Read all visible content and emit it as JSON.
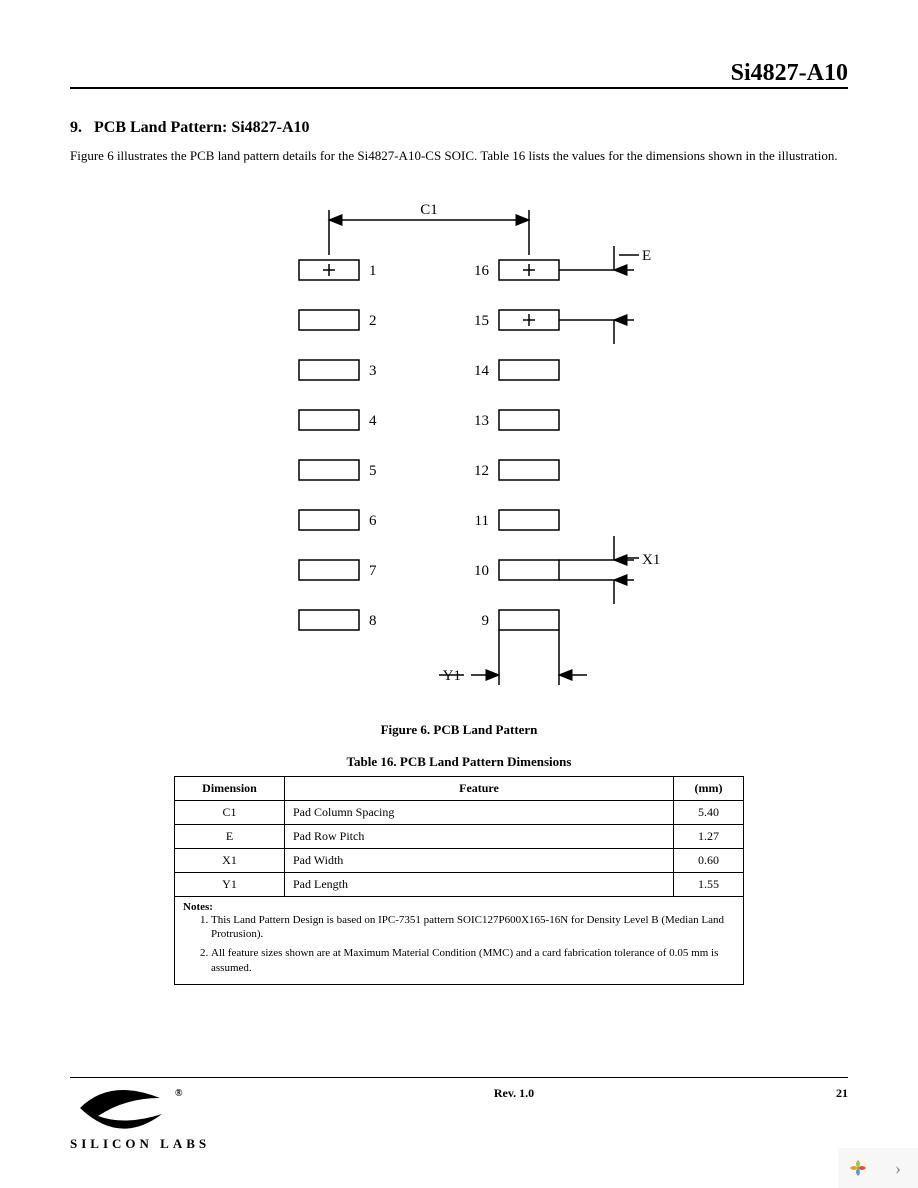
{
  "header": {
    "doc_title": "Si4827-A10"
  },
  "section": {
    "number": "9.",
    "title": "PCB Land Pattern: Si4827-A10",
    "intro": "Figure 6 illustrates the PCB land pattern details for the Si4827-A10-CS SOIC. Table 16 lists the values for the dimensions shown in the illustration."
  },
  "figure": {
    "caption": "Figure 6. PCB Land Pattern",
    "labels": {
      "C1": "C1",
      "E": "E",
      "X1": "X1",
      "Y1": "Y1"
    },
    "pad_count_per_side": 8,
    "left_pin_numbers": [
      "1",
      "2",
      "3",
      "4",
      "5",
      "6",
      "7",
      "8"
    ],
    "right_pin_numbers": [
      "16",
      "15",
      "14",
      "13",
      "12",
      "11",
      "10",
      "9"
    ],
    "stroke_color": "#000000",
    "background_color": "#ffffff",
    "pad": {
      "width": 60,
      "height": 20,
      "row_pitch": 50,
      "col_gap": 140
    }
  },
  "table": {
    "caption": "Table 16. PCB Land Pattern Dimensions",
    "columns": [
      "Dimension",
      "Feature",
      "(mm)"
    ],
    "rows": [
      [
        "C1",
        "Pad Column Spacing",
        "5.40"
      ],
      [
        "E",
        "Pad Row Pitch",
        "1.27"
      ],
      [
        "X1",
        "Pad Width",
        "0.60"
      ],
      [
        "Y1",
        "Pad Length",
        "1.55"
      ]
    ],
    "notes_label": "Notes:",
    "notes": [
      "This Land Pattern Design is based on IPC-7351 pattern SOIC127P600X165-16N for Density Level B (Median Land Protrusion).",
      "All feature sizes shown are at Maximum Material Condition (MMC) and a card fabrication tolerance of 0.05 mm is assumed."
    ]
  },
  "footer": {
    "rev": "Rev. 1.0",
    "page": "21",
    "logo_text": "SILICON LABS",
    "logo_color": "#000000"
  }
}
